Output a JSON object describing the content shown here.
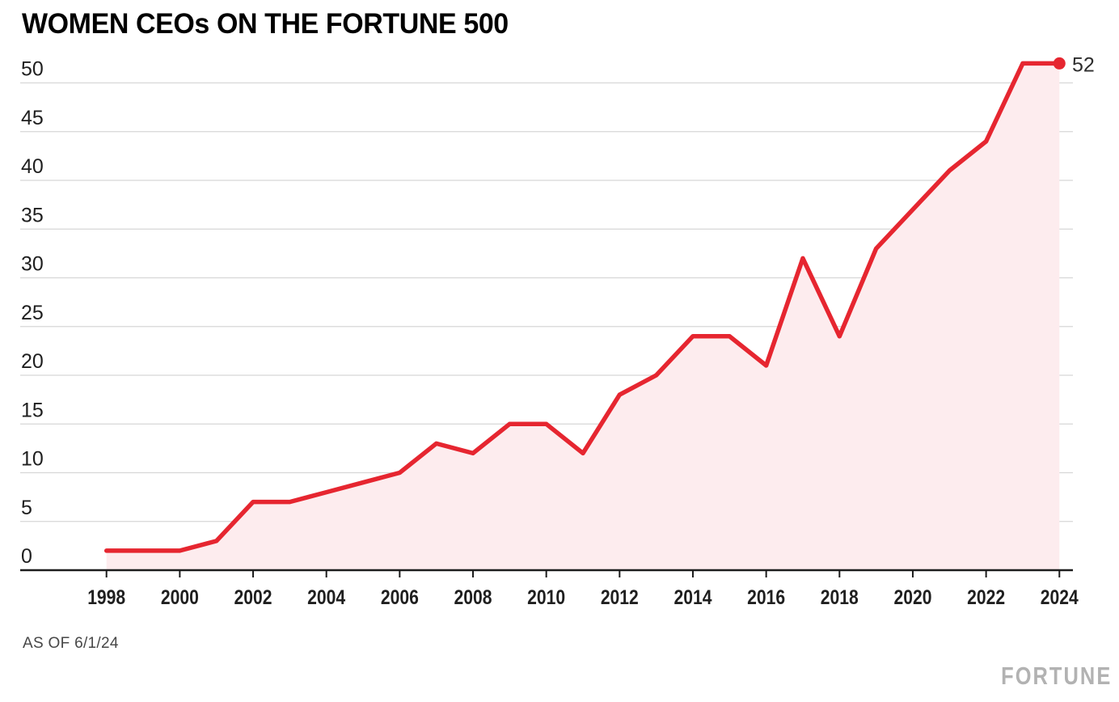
{
  "header": {
    "title": "WOMEN CEOs ON THE FORTUNE 500"
  },
  "footer": {
    "footnote": "AS OF 6/1/24",
    "brand": "FORTUNE"
  },
  "chart_data": {
    "type": "area",
    "title": "WOMEN CEOs ON THE FORTUNE 500",
    "x": [
      1998,
      1999,
      2000,
      2001,
      2002,
      2003,
      2004,
      2005,
      2006,
      2007,
      2008,
      2009,
      2010,
      2011,
      2012,
      2013,
      2014,
      2015,
      2016,
      2017,
      2018,
      2019,
      2020,
      2021,
      2022,
      2023,
      2024
    ],
    "values": [
      2,
      2,
      2,
      3,
      7,
      7,
      8,
      9,
      10,
      13,
      12,
      15,
      15,
      12,
      18,
      20,
      24,
      24,
      21,
      32,
      24,
      33,
      37,
      41,
      44,
      52,
      52
    ],
    "end_label": "52",
    "xlabel": "",
    "ylabel": "",
    "xlim": [
      1998,
      2024
    ],
    "ylim": [
      0,
      52
    ],
    "yticks": [
      0,
      5,
      10,
      15,
      20,
      25,
      30,
      35,
      40,
      45,
      50
    ],
    "xticks": [
      1998,
      2000,
      2002,
      2004,
      2006,
      2008,
      2010,
      2012,
      2014,
      2016,
      2018,
      2020,
      2022,
      2024
    ],
    "grid": "horizontal",
    "legend": "none",
    "colors": {
      "line": "#e62630",
      "fill": "#fdecee",
      "grid": "#d7d7d7",
      "axis": "#1c1c1c",
      "tick_label": "#1f1f1f",
      "end_label": "#2e2e2e"
    }
  }
}
